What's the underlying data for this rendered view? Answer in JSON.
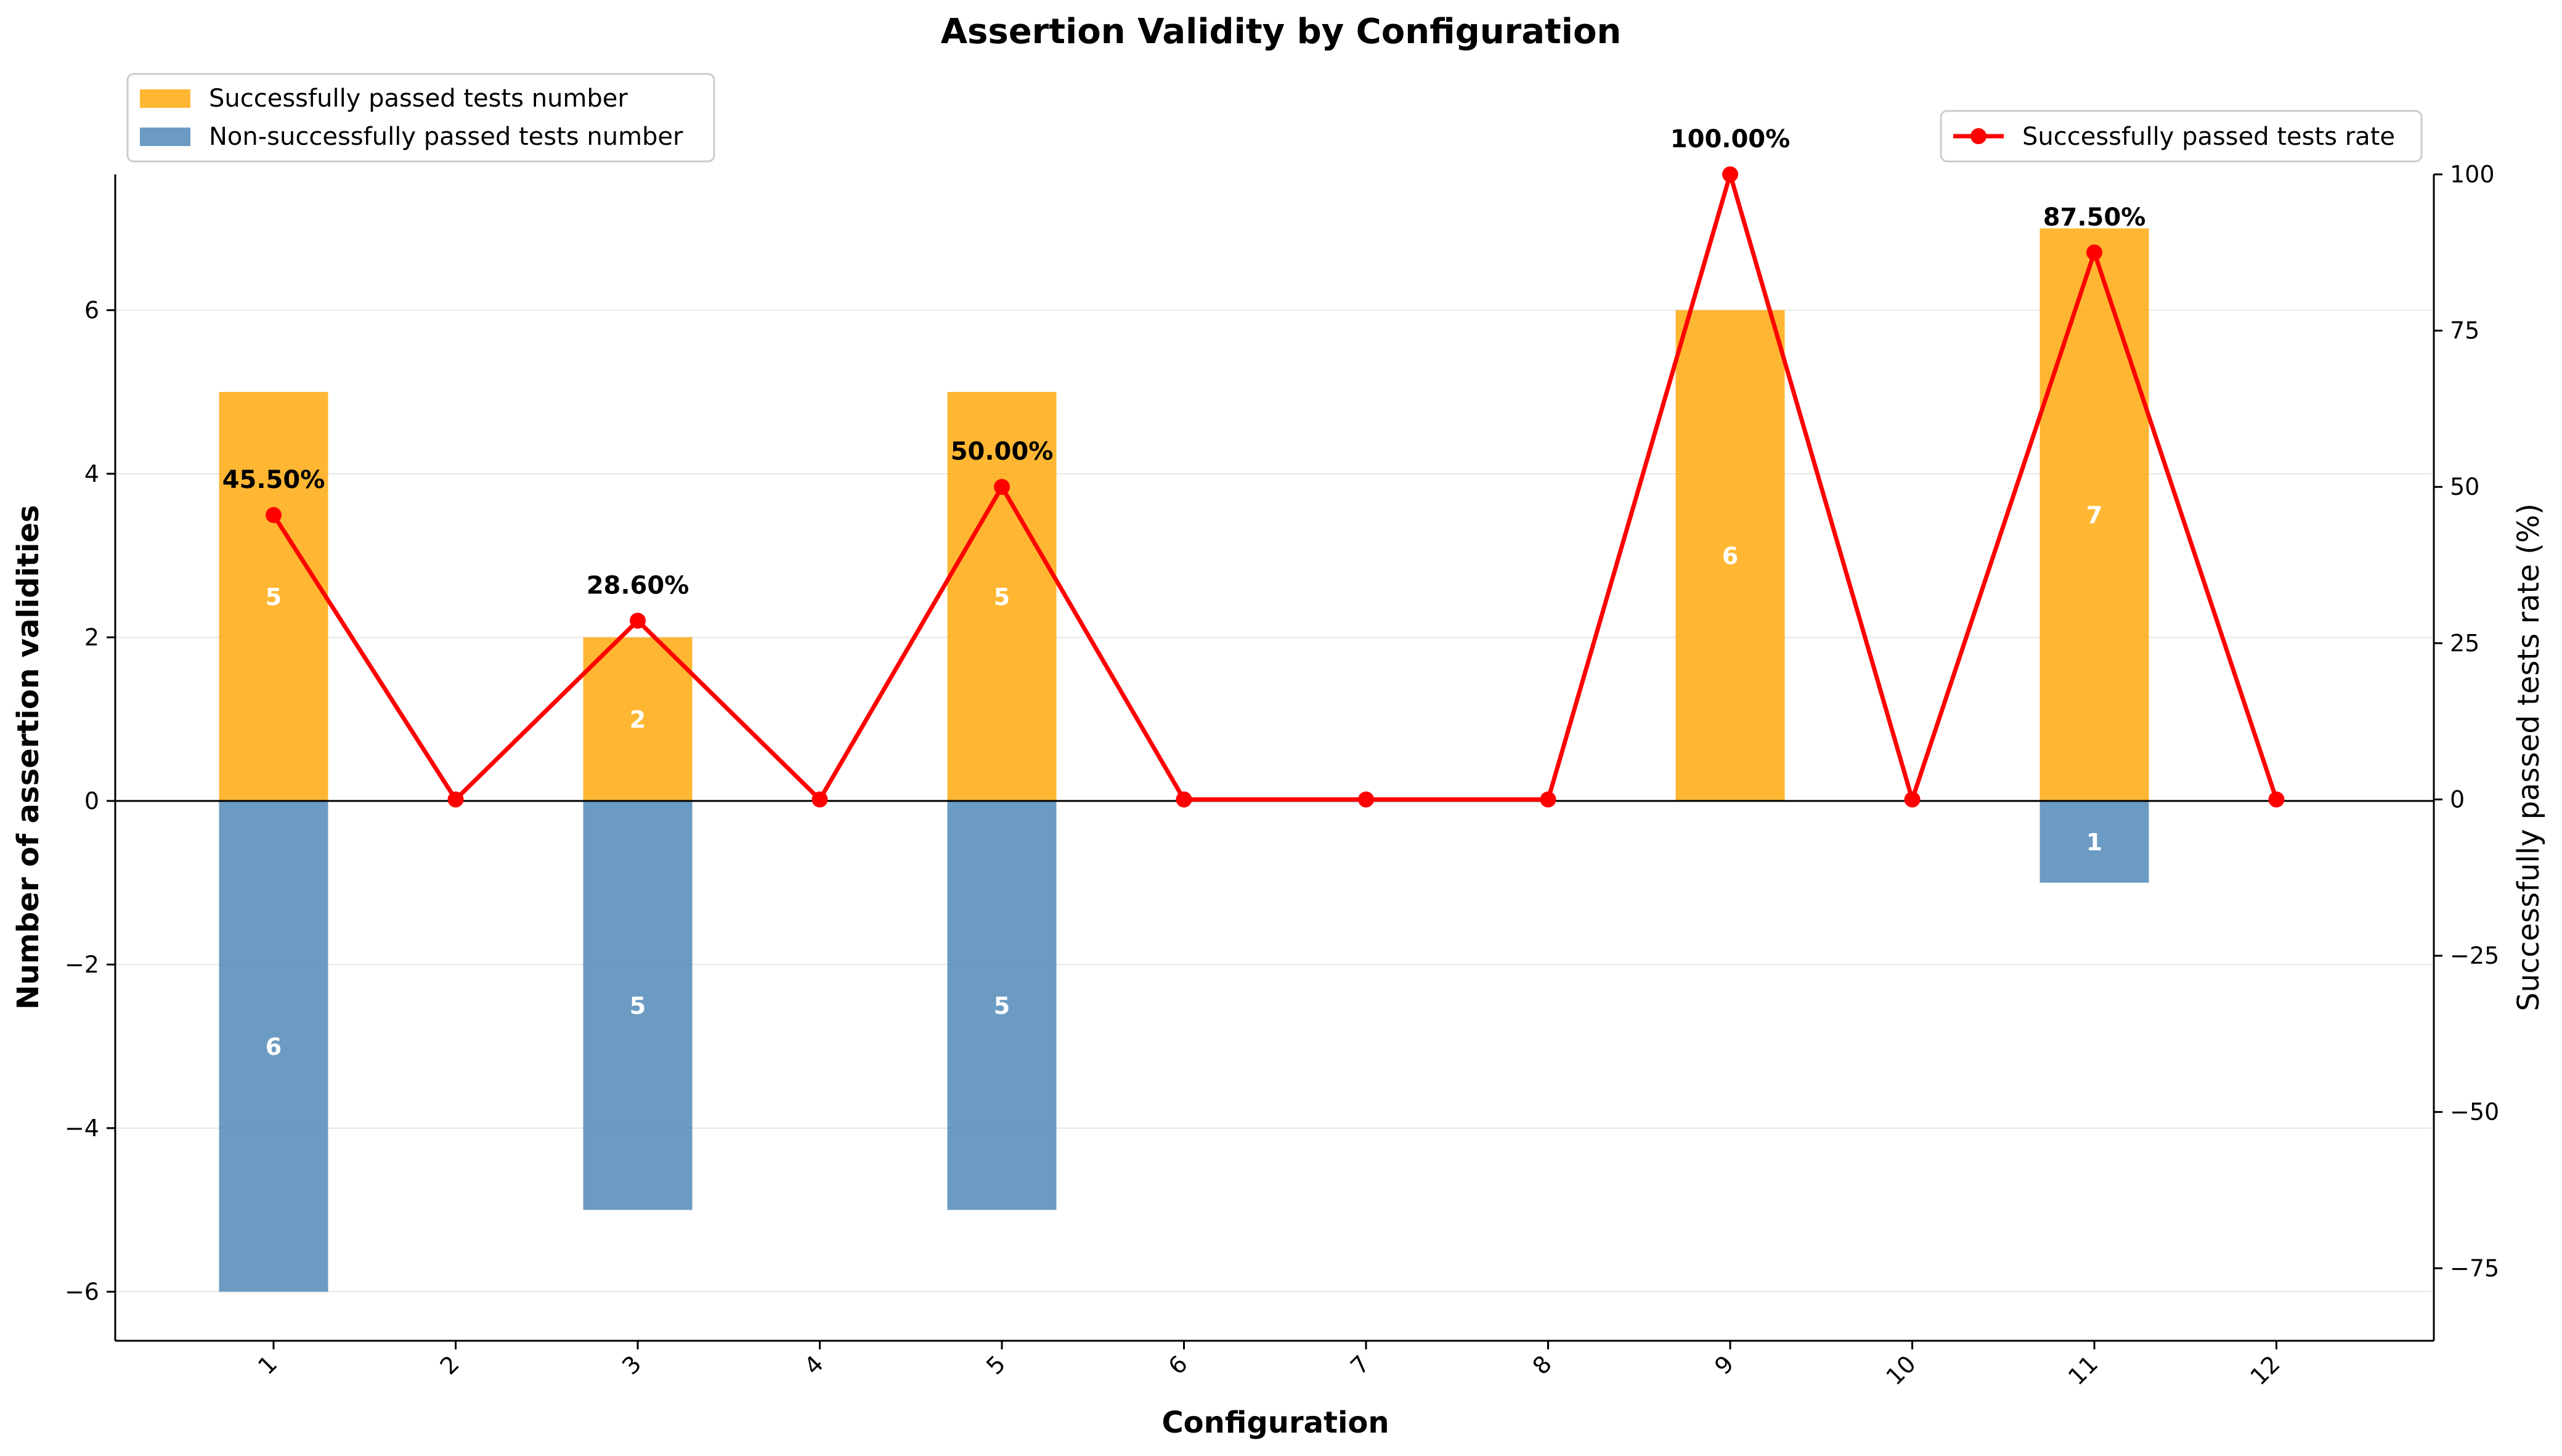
{
  "chart_data": {
    "type": "bar",
    "title": "Assertion Validity by Configuration",
    "xlabel": "Configuration",
    "ylabel": "Number of assertion validities",
    "y2label": "Successfully passed tests rate (%)",
    "categories": [
      "1",
      "2",
      "3",
      "4",
      "5",
      "6",
      "7",
      "8",
      "9",
      "10",
      "11",
      "12"
    ],
    "series": [
      {
        "name": "Successfully passed tests number",
        "kind": "bar",
        "color": "#FFA500",
        "values": [
          5,
          0,
          2,
          0,
          5,
          0,
          0,
          0,
          6,
          0,
          7,
          0
        ],
        "labels": [
          "5",
          "",
          "2",
          "",
          "5",
          "",
          "",
          "",
          "6",
          "",
          "7",
          ""
        ]
      },
      {
        "name": "Non-successfully passed tests number",
        "kind": "bar",
        "color": "#4682B4",
        "values": [
          -6,
          0,
          -5,
          0,
          -5,
          0,
          0,
          0,
          0,
          0,
          -1,
          0
        ],
        "labels": [
          "6",
          "",
          "5",
          "",
          "5",
          "",
          "",
          "",
          "",
          "",
          "1",
          ""
        ]
      },
      {
        "name": "Successfully passed tests rate",
        "kind": "line",
        "axis": "right",
        "color": "#FF0000",
        "values": [
          45.5,
          0,
          28.6,
          0,
          50.0,
          0,
          0,
          0,
          100.0,
          0,
          87.5,
          0
        ],
        "labels": [
          "45.50%",
          "",
          "28.60%",
          "",
          "50.00%",
          "",
          "",
          "",
          "100.00%",
          "",
          "87.50%",
          ""
        ]
      }
    ],
    "ylim": [
      -6.6,
      7.66
    ],
    "y2lim": [
      -86.6,
      100
    ],
    "yticks": [
      "6",
      "4",
      "2",
      "0",
      "−2",
      "−4",
      "−6"
    ],
    "y2ticks": [
      "100",
      "75",
      "50",
      "25",
      "0",
      "−25",
      "−50",
      "−75"
    ],
    "grid": true,
    "legend_left": "top-left",
    "legend_right": "top-right"
  }
}
